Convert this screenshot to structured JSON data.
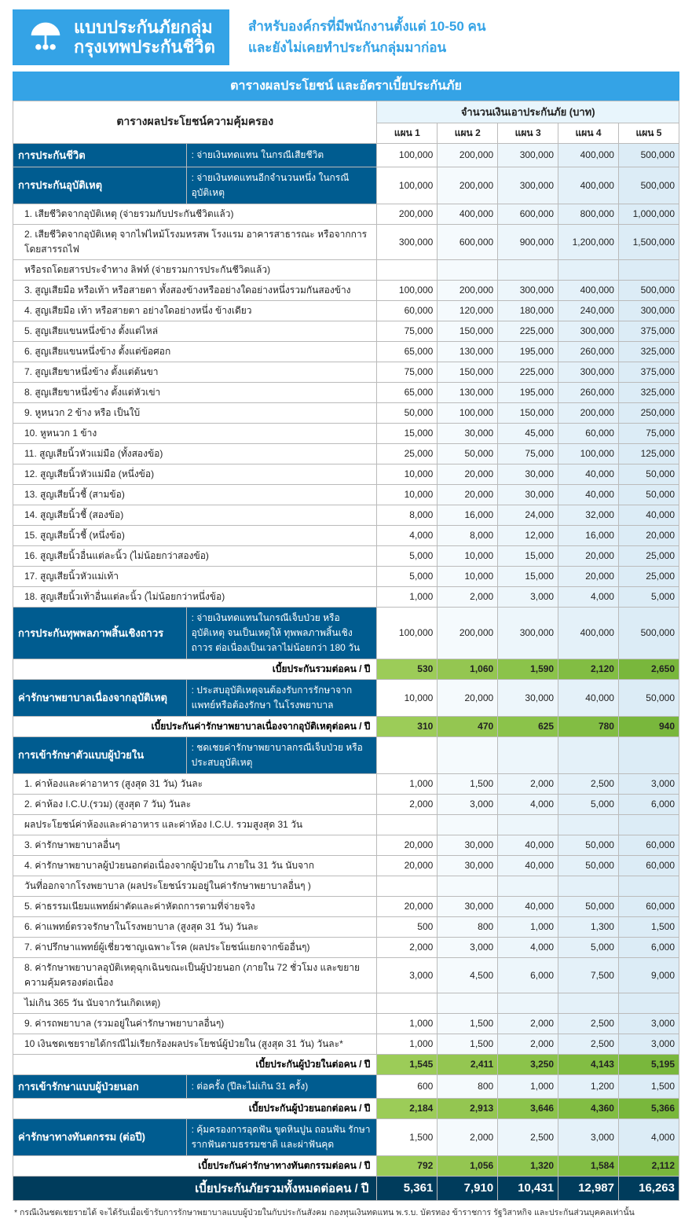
{
  "header": {
    "logo_line1": "แบบประกันภัยกลุ่ม",
    "logo_line2": "กรุงเทพประกันชีวิต",
    "right_line1": "สำหรับองค์กรที่มีพนักงานตั้งแต่ 10-50 คน",
    "right_line2": "และยังไม่เคยทำประกันกลุ่มมาก่อน"
  },
  "title": "ตารางผลประโยชน์ และอัตราเบี้ยประกันภัย",
  "coverage_header": "ตารางผลประโยชน์ความคุ้มครอง",
  "amount_header": "จำนวนเงินเอาประกันภัย (บาท)",
  "plans": [
    "แผน 1",
    "แผน 2",
    "แผน 3",
    "แผน 4",
    "แผน 5"
  ],
  "secs": [
    {
      "label": "การประกันชีวิต",
      "desc": ": จ่ายเงินทดแทน ในกรณีเสียชีวิต",
      "vals": [
        "100,000",
        "200,000",
        "300,000",
        "400,000",
        "500,000"
      ]
    },
    {
      "label": "การประกันอุบัติเหตุ",
      "desc": ": จ่ายเงินทดแทนอีกจำนวนหนึ่ง ในกรณีอุบัติเหตุ",
      "vals": [
        "100,000",
        "200,000",
        "300,000",
        "400,000",
        "500,000"
      ]
    }
  ],
  "acc_items": [
    {
      "t": "1. เสียชีวิตจากอุบัติเหตุ (จ่ายรวมกับประกันชีวิตแล้ว)",
      "v": [
        "200,000",
        "400,000",
        "600,000",
        "800,000",
        "1,000,000"
      ]
    },
    {
      "t": "2. เสียชีวิตจากอุบัติเหตุ จากไฟไหม้โรงมหรสพ โรงแรม อาคารสาธารณะ หรือจากการโดยสารรถไฟ",
      "v": [
        "300,000",
        "600,000",
        "900,000",
        "1,200,000",
        "1,500,000"
      ]
    },
    {
      "t": "   หรือรถโดยสารประจำทาง ลิฟท์ (จ่ายรวมการประกันชีวิตแล้ว)",
      "v": [
        "",
        "",
        "",
        "",
        ""
      ]
    },
    {
      "t": "3. สูญเสียมือ หรือเท้า หรือสายตา ทั้งสองข้างหรืออย่างใดอย่างหนึ่งรวมกันสองข้าง",
      "v": [
        "100,000",
        "200,000",
        "300,000",
        "400,000",
        "500,000"
      ]
    },
    {
      "t": "4. สูญเสียมือ เท้า หรือสายตา อย่างใดอย่างหนึ่ง ข้างเดียว",
      "v": [
        "60,000",
        "120,000",
        "180,000",
        "240,000",
        "300,000"
      ]
    },
    {
      "t": "5. สูญเสียแขนหนึ่งข้าง ตั้งแต่ไหล่",
      "v": [
        "75,000",
        "150,000",
        "225,000",
        "300,000",
        "375,000"
      ]
    },
    {
      "t": "6. สูญเสียแขนหนึ่งข้าง ตั้งแต่ข้อศอก",
      "v": [
        "65,000",
        "130,000",
        "195,000",
        "260,000",
        "325,000"
      ]
    },
    {
      "t": "7. สูญเสียขาหนึ่งข้าง ตั้งแต่ต้นขา",
      "v": [
        "75,000",
        "150,000",
        "225,000",
        "300,000",
        "375,000"
      ]
    },
    {
      "t": "8. สูญเสียขาหนึ่งข้าง ตั้งแต่หัวเข่า",
      "v": [
        "65,000",
        "130,000",
        "195,000",
        "260,000",
        "325,000"
      ]
    },
    {
      "t": "9. หูหนวก 2 ข้าง หรือ เป็นใบ้",
      "v": [
        "50,000",
        "100,000",
        "150,000",
        "200,000",
        "250,000"
      ]
    },
    {
      "t": "10. หูหนวก 1 ข้าง",
      "v": [
        "15,000",
        "30,000",
        "45,000",
        "60,000",
        "75,000"
      ]
    },
    {
      "t": "11. สูญเสียนิ้วหัวแม่มือ (ทั้งสองข้อ)",
      "v": [
        "25,000",
        "50,000",
        "75,000",
        "100,000",
        "125,000"
      ]
    },
    {
      "t": "12. สูญเสียนิ้วหัวแม่มือ (หนึ่งข้อ)",
      "v": [
        "10,000",
        "20,000",
        "30,000",
        "40,000",
        "50,000"
      ]
    },
    {
      "t": "13. สูญเสียนิ้วชี้ (สามข้อ)",
      "v": [
        "10,000",
        "20,000",
        "30,000",
        "40,000",
        "50,000"
      ]
    },
    {
      "t": "14. สูญเสียนิ้วชี้ (สองข้อ)",
      "v": [
        "8,000",
        "16,000",
        "24,000",
        "32,000",
        "40,000"
      ]
    },
    {
      "t": "15. สูญเสียนิ้วชี้ (หนึ่งข้อ)",
      "v": [
        "4,000",
        "8,000",
        "12,000",
        "16,000",
        "20,000"
      ]
    },
    {
      "t": "16. สูญเสียนิ้วอื่นแต่ละนิ้ว (ไม่น้อยกว่าสองข้อ)",
      "v": [
        "5,000",
        "10,000",
        "15,000",
        "20,000",
        "25,000"
      ]
    },
    {
      "t": "17. สูญเสียนิ้วหัวแม่เท้า",
      "v": [
        "5,000",
        "10,000",
        "15,000",
        "20,000",
        "25,000"
      ]
    },
    {
      "t": "18. สูญเสียนิ้วเท้าอื่นแต่ละนิ้ว (ไม่น้อยกว่าหนึ่งข้อ)",
      "v": [
        "1,000",
        "2,000",
        "3,000",
        "4,000",
        "5,000"
      ]
    }
  ],
  "disab": {
    "label": "การประกันทุพพลภาพสิ้นเชิงถาวร",
    "desc": ": จ่ายเงินทดแทนในกรณีเจ็บป่วย หรือ อุบัติเหตุ จนเป็นเหตุให้ ทุพพลภาพสิ้นเชิงถาวร ต่อเนื่องเป็นเวลาไม่น้อยกว่า 180 วัน",
    "vals": [
      "100,000",
      "200,000",
      "300,000",
      "400,000",
      "500,000"
    ]
  },
  "subtotal1": {
    "label": "เบี้ยประกันรวมต่อคน / ปี",
    "vals": [
      "530",
      "1,060",
      "1,590",
      "2,120",
      "2,650"
    ]
  },
  "med_acc": {
    "label": "ค่ารักษาพยาบาลเนื่องจากอุบัติเหตุ",
    "desc": ": ประสบอุบัติเหตุจนต้องรับการรักษาจากแพทย์หรือต้องรักษา ในโรงพยาบาล",
    "vals": [
      "10,000",
      "20,000",
      "30,000",
      "40,000",
      "50,000"
    ]
  },
  "subtotal2": {
    "label": "เบี้ยประกันค่ารักษาพยาบาลเนื่องจากอุบัติเหตุต่อคน / ปี",
    "vals": [
      "310",
      "470",
      "625",
      "780",
      "940"
    ]
  },
  "ipd": {
    "label": "การเข้ารักษาตัวแบบผู้ป่วยใน",
    "desc": ": ชดเชยค่ารักษาพยาบาลกรณีเจ็บป่วย หรือประสบอุบัติเหตุ"
  },
  "ipd_items": [
    {
      "t": "1. ค่าห้องและค่าอาหาร (สูงสุด 31 วัน) วันละ",
      "v": [
        "1,000",
        "1,500",
        "2,000",
        "2,500",
        "3,000"
      ]
    },
    {
      "t": "2. ค่าห้อง I.C.U.(รวม) (สูงสุด 7 วัน) วันละ",
      "v": [
        "2,000",
        "3,000",
        "4,000",
        "5,000",
        "6,000"
      ]
    },
    {
      "t": "    ผลประโยชน์ค่าห้องและค่าอาหาร และค่าห้อง I.C.U. รวมสูงสุด 31 วัน",
      "v": [
        "",
        "",
        "",
        "",
        ""
      ]
    },
    {
      "t": "3. ค่ารักษาพยาบาลอื่นๆ",
      "v": [
        "20,000",
        "30,000",
        "40,000",
        "50,000",
        "60,000"
      ]
    },
    {
      "t": "4. ค่ารักษาพยาบาลผู้ป่วยนอกต่อเนื่องจากผู้ป่วยใน ภายใน 31 วัน นับจาก",
      "v": [
        "20,000",
        "30,000",
        "40,000",
        "50,000",
        "60,000"
      ]
    },
    {
      "t": "    วันที่ออกจากโรงพยาบาล (ผลประโยชน์รวมอยู่ในค่ารักษาพยาบาลอื่นๆ )",
      "v": [
        "",
        "",
        "",
        "",
        ""
      ]
    },
    {
      "t": "5. ค่าธรรมเนียมแพทย์ผ่าตัดและค่าหัตถการตามที่จ่ายจริง",
      "v": [
        "20,000",
        "30,000",
        "40,000",
        "50,000",
        "60,000"
      ]
    },
    {
      "t": "6. ค่าแพทย์ตรวจรักษาในโรงพยาบาล (สูงสุด 31 วัน) วันละ",
      "v": [
        "500",
        "800",
        "1,000",
        "1,300",
        "1,500"
      ]
    },
    {
      "t": "7. ค่าปรึกษาแพทย์ผู้เชี่ยวชาญเฉพาะโรค (ผลประโยชน์แยกจากข้ออื่นๆ)",
      "v": [
        "2,000",
        "3,000",
        "4,000",
        "5,000",
        "6,000"
      ]
    },
    {
      "t": "8. ค่ารักษาพยาบาลอุบัติเหตุฉุกเฉินขณะเป็นผู้ป่วยนอก (ภายใน 72 ชั่วโมง  และขยายความคุ้มครองต่อเนื่อง",
      "v": [
        "3,000",
        "4,500",
        "6,000",
        "7,500",
        "9,000"
      ]
    },
    {
      "t": "    ไม่เกิน 365 วัน นับจากวันเกิดเหตุ)",
      "v": [
        "",
        "",
        "",
        "",
        ""
      ]
    },
    {
      "t": "9. ค่ารถพยาบาล (รวมอยู่ในค่ารักษาพยาบาลอื่นๆ)",
      "v": [
        "1,000",
        "1,500",
        "2,000",
        "2,500",
        "3,000"
      ]
    },
    {
      "t": "10 เงินชดเชยรายได้กรณีไม่เรียกร้องผลประโยชน์ผู้ป่วยใน (สูงสุด 31 วัน) วันละ*",
      "v": [
        "1,000",
        "1,500",
        "2,000",
        "2,500",
        "3,000"
      ]
    }
  ],
  "subtotal3": {
    "label": "เบี้ยประกันผู้ป่วยในต่อคน / ปี",
    "vals": [
      "1,545",
      "2,411",
      "3,250",
      "4,143",
      "5,195"
    ]
  },
  "opd": {
    "label": "การเข้ารักษาแบบผู้ป่วยนอก",
    "desc": ": ต่อครั้ง (ปีละไม่เกิน 31 ครั้ง)",
    "vals": [
      "600",
      "800",
      "1,000",
      "1,200",
      "1,500"
    ]
  },
  "subtotal4": {
    "label": "เบี้ยประกันผู้ป่วยนอกต่อคน / ปี",
    "vals": [
      "2,184",
      "2,913",
      "3,646",
      "4,360",
      "5,366"
    ]
  },
  "dental": {
    "label": "ค่ารักษาทางทันตกรรม  (ต่อปี)",
    "desc": ": คุ้มครองการอุดฟัน ขูดหินปูน ถอนฟัน รักษารากฟันตามธรรมชาติ และผ่าฟันคุด",
    "vals": [
      "1,500",
      "2,000",
      "2,500",
      "3,000",
      "4,000"
    ]
  },
  "subtotal5": {
    "label": "เบี้ยประกันค่ารักษาทางทันตกรรมต่อคน / ปี",
    "vals": [
      "792",
      "1,056",
      "1,320",
      "1,584",
      "2,112"
    ]
  },
  "grand": {
    "label": "เบี้ยประกันภัยรวมทั้งหมดต่อคน / ปี",
    "vals": [
      "5,361",
      "7,910",
      "10,431",
      "12,987",
      "16,263"
    ]
  },
  "footnote": "*  กรณีเงินชดเชยรายได้ จะได้รับเมื่อเข้ารับการรักษาพยาบาลแบบผู้ป่วยในกับประกันสังคม กองทุนเงินทดแทน พ.ร.บ. บัตรทอง ข้าราชการ รัฐวิสาหกิจ และประกันส่วนบุคคลเท่านั้น"
}
